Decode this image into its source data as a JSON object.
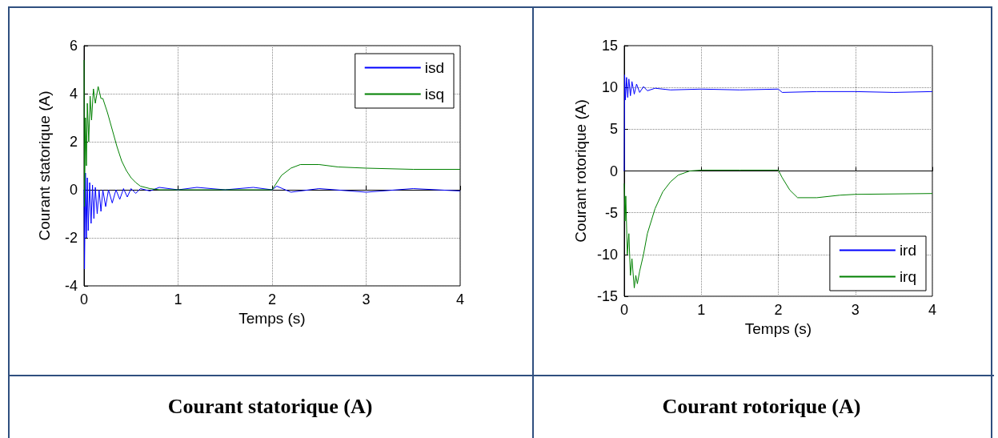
{
  "chart_data": [
    {
      "type": "line",
      "title": "Courant statorique (A)",
      "xlabel": "Temps (s)",
      "ylabel": "Courant statorique (A)",
      "xlim": [
        0,
        4
      ],
      "xticks": [
        0,
        1,
        2,
        3,
        4
      ],
      "ylim": [
        -4,
        6
      ],
      "yticks": [
        -4,
        -2,
        0,
        2,
        4,
        6
      ],
      "grid": true,
      "legend": "top right",
      "marker": "none",
      "line_style": "solid",
      "series": [
        {
          "name": "isd",
          "color": "#0000ff",
          "x": [
            0,
            0.005,
            0.015,
            0.025,
            0.035,
            0.045,
            0.06,
            0.075,
            0.09,
            0.105,
            0.12,
            0.14,
            0.16,
            0.18,
            0.2,
            0.23,
            0.26,
            0.3,
            0.34,
            0.38,
            0.42,
            0.46,
            0.5,
            0.55,
            0.6,
            0.7,
            0.8,
            1.0,
            1.2,
            1.5,
            1.8,
            2.0,
            2.05,
            2.2,
            2.5,
            3.0,
            3.5,
            4.0
          ],
          "values": [
            0,
            -3.3,
            0.7,
            -2.0,
            0.5,
            -1.7,
            0.3,
            -1.4,
            0.2,
            -1.2,
            0.1,
            -1.0,
            0.0,
            -0.9,
            0.0,
            -0.7,
            0.0,
            -0.55,
            0.0,
            -0.4,
            0.05,
            -0.3,
            0.05,
            -0.15,
            0.05,
            -0.05,
            0.1,
            0.0,
            0.1,
            0.0,
            0.1,
            0.0,
            0.15,
            -0.1,
            0.05,
            -0.1,
            0.05,
            -0.05
          ]
        },
        {
          "name": "isq",
          "color": "#008000",
          "x": [
            0,
            0.005,
            0.015,
            0.025,
            0.035,
            0.05,
            0.065,
            0.08,
            0.1,
            0.12,
            0.15,
            0.18,
            0.2,
            0.25,
            0.3,
            0.35,
            0.4,
            0.45,
            0.5,
            0.55,
            0.6,
            0.7,
            0.8,
            1.0,
            1.5,
            2.0,
            2.05,
            2.1,
            2.2,
            2.3,
            2.5,
            2.7,
            3.0,
            3.5,
            4.0
          ],
          "values": [
            5.4,
            -0.7,
            3.0,
            1.0,
            3.6,
            2.0,
            3.9,
            2.9,
            4.2,
            3.6,
            4.3,
            3.8,
            3.8,
            3.2,
            2.5,
            1.8,
            1.2,
            0.8,
            0.5,
            0.3,
            0.15,
            0.05,
            0.0,
            0.0,
            0.0,
            0.0,
            0.3,
            0.6,
            0.9,
            1.05,
            1.05,
            0.95,
            0.9,
            0.85,
            0.85
          ]
        }
      ]
    },
    {
      "type": "line",
      "title": "Courant rotorique (A)",
      "xlabel": "Temps (s)",
      "ylabel": "Courant rotorique (A)",
      "xlim": [
        0,
        4
      ],
      "xticks": [
        0,
        1,
        2,
        3,
        4
      ],
      "ylim": [
        -15,
        15
      ],
      "yticks": [
        -15,
        -10,
        -5,
        0,
        5,
        10,
        15
      ],
      "grid": true,
      "legend": "bottom right",
      "marker": "none",
      "line_style": "solid",
      "series": [
        {
          "name": "ird",
          "color": "#0000ff",
          "x": [
            0,
            0.005,
            0.015,
            0.03,
            0.045,
            0.06,
            0.08,
            0.1,
            0.13,
            0.16,
            0.2,
            0.25,
            0.3,
            0.4,
            0.6,
            1.0,
            1.5,
            2.0,
            2.05,
            2.5,
            3.0,
            3.5,
            4.0
          ],
          "values": [
            0,
            11.5,
            8.5,
            11.2,
            8.8,
            11.0,
            9.0,
            10.7,
            9.2,
            10.4,
            9.4,
            10.1,
            9.6,
            9.9,
            9.7,
            9.8,
            9.7,
            9.8,
            9.4,
            9.5,
            9.5,
            9.4,
            9.5
          ]
        },
        {
          "name": "irq",
          "color": "#008000",
          "x": [
            0,
            0.01,
            0.02,
            0.04,
            0.06,
            0.08,
            0.1,
            0.13,
            0.15,
            0.17,
            0.2,
            0.25,
            0.3,
            0.4,
            0.5,
            0.6,
            0.7,
            0.85,
            1.0,
            1.5,
            2.0,
            2.05,
            2.15,
            2.25,
            2.5,
            2.8,
            3.0,
            4.0
          ],
          "values": [
            -1.5,
            -6,
            -3,
            -10,
            -7.5,
            -12.5,
            -10.5,
            -14,
            -12.5,
            -13.5,
            -12,
            -10,
            -7.5,
            -4.5,
            -2.5,
            -1.3,
            -0.5,
            0,
            0.1,
            0.1,
            0.1,
            -0.8,
            -2.3,
            -3.2,
            -3.2,
            -2.9,
            -2.8,
            -2.7
          ]
        }
      ]
    }
  ]
}
